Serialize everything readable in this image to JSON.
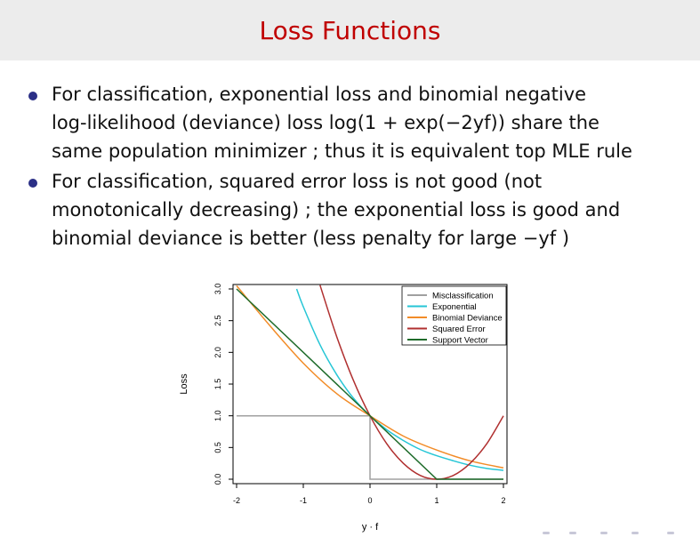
{
  "slide": {
    "title": "Loss Functions",
    "bullets": [
      {
        "lines": [
          "For classification, exponential loss and binomial negative",
          "log-likelihood (deviance) loss log(1 + exp(−2yf)) share the",
          "same population minimizer ; thus it is equivalent top MLE rule"
        ]
      },
      {
        "lines": [
          "For classification, squared error loss is not good (not",
          "monotonically decreasing) ; the exponential loss is good and",
          "binomial deviance is better (less penalty for large −yf )"
        ]
      }
    ]
  },
  "chart_data": {
    "type": "line",
    "xlabel": "y · f",
    "ylabel": "Loss",
    "xlim": [
      -2,
      2
    ],
    "ylim": [
      0,
      3
    ],
    "x_ticks": [
      "-2",
      "-1",
      "0",
      "1",
      "2"
    ],
    "y_ticks": [
      "0.0",
      "0.5",
      "1.0",
      "1.5",
      "2.0",
      "2.5",
      "3.0"
    ],
    "legend_position": "top-right",
    "series": [
      {
        "name": "Misclassification",
        "color": "#a0a0a0",
        "x": [
          -2,
          0,
          0,
          2
        ],
        "y": [
          1,
          1,
          0,
          0
        ]
      },
      {
        "name": "Exponential",
        "color": "#26c6d6",
        "x": [
          -1.1,
          -1.0,
          -0.75,
          -0.5,
          -0.25,
          0,
          0.25,
          0.5,
          0.75,
          1.0,
          1.25,
          1.5,
          1.75,
          2.0
        ],
        "y": [
          3.0,
          2.72,
          2.12,
          1.65,
          1.28,
          1.0,
          0.78,
          0.61,
          0.47,
          0.37,
          0.29,
          0.22,
          0.17,
          0.14
        ]
      },
      {
        "name": "Binomial Deviance",
        "color": "#f28c28",
        "x": [
          -2,
          -1.5,
          -1.0,
          -0.5,
          0,
          0.5,
          1.0,
          1.5,
          2.0
        ],
        "y": [
          3.05,
          2.42,
          1.83,
          1.35,
          1.0,
          0.68,
          0.46,
          0.29,
          0.18
        ]
      },
      {
        "name": "Squared Error",
        "color": "#b03030",
        "x": [
          -0.75,
          -0.5,
          -0.25,
          0,
          0.25,
          0.5,
          0.75,
          1.0,
          1.25,
          1.5,
          1.75,
          2.0
        ],
        "y": [
          3.06,
          2.25,
          1.56,
          1.0,
          0.56,
          0.25,
          0.06,
          0.0,
          0.06,
          0.25,
          0.56,
          1.0
        ]
      },
      {
        "name": "Support Vector",
        "color": "#1e6b2a",
        "x": [
          -2,
          1,
          2
        ],
        "y": [
          3,
          0,
          0
        ]
      }
    ]
  }
}
